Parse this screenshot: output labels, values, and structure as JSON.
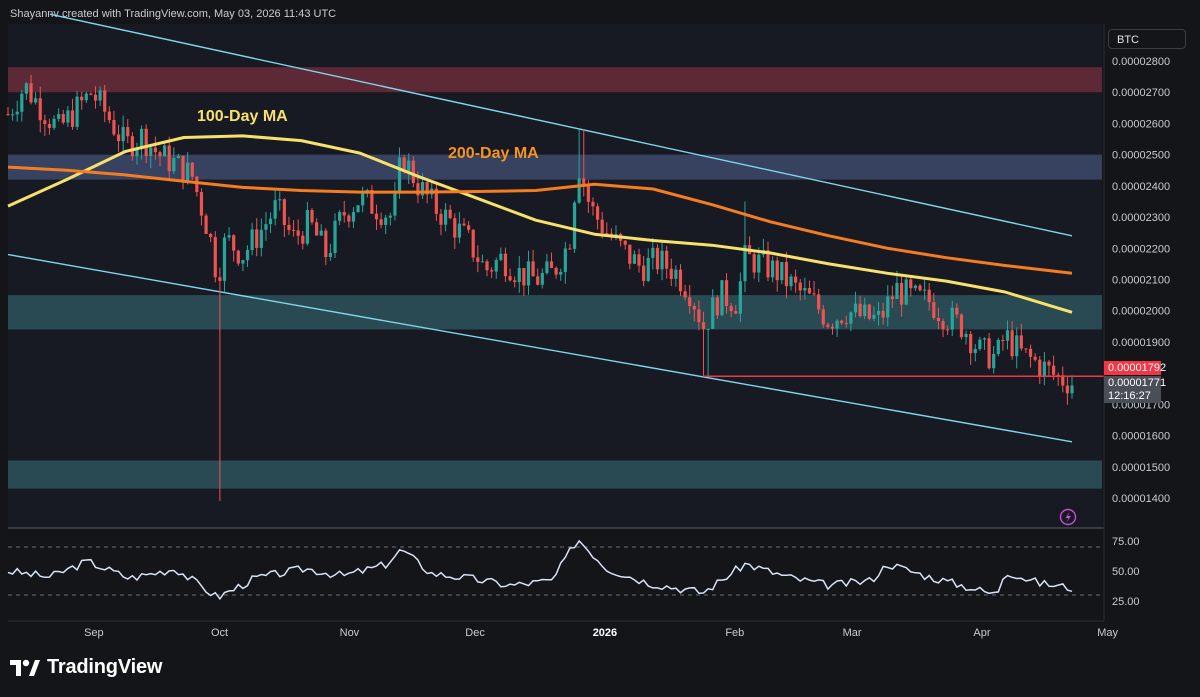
{
  "header": {
    "attribution": "Shayannv created with TradingView.com, May 03, 2026 11:43 UTC"
  },
  "symbol": {
    "label": "BTC"
  },
  "price_axis": {
    "ticks": [
      "0.00002800",
      "0.00002700",
      "0.00002600",
      "0.00002500",
      "0.00002400",
      "0.00002300",
      "0.00002200",
      "0.00002100",
      "0.00002000",
      "0.00001900",
      "0.00001700",
      "0.00001600",
      "0.00001500",
      "0.00001400"
    ]
  },
  "rsi_axis": {
    "ticks": [
      "75.00",
      "50.00",
      "25.00"
    ]
  },
  "time_axis": {
    "ticks": [
      {
        "label": "Sep",
        "bold": false
      },
      {
        "label": "Oct",
        "bold": false
      },
      {
        "label": "Nov",
        "bold": false
      },
      {
        "label": "Dec",
        "bold": false
      },
      {
        "label": "2026",
        "bold": true
      },
      {
        "label": "Feb",
        "bold": false
      },
      {
        "label": "Mar",
        "bold": false
      },
      {
        "label": "Apr",
        "bold": false
      },
      {
        "label": "May",
        "bold": false
      }
    ]
  },
  "annotations": {
    "ma100": "100-Day MA",
    "ma200": "200-Day MA"
  },
  "last_price": {
    "level": "0.00001792",
    "current": "0.00001771",
    "countdown": "12:16:27"
  },
  "branding": {
    "name": "TradingView"
  },
  "colors": {
    "background": "#141519",
    "up": "#26a69a",
    "down": "#ef5350",
    "ma100": "#f7e16b",
    "ma200": "#f57c1f",
    "channel": "#7fd6ea",
    "rsi": "#d7e3f7",
    "level_line": "#f23645"
  },
  "chart_data": {
    "type": "candlestick",
    "series": [
      {
        "name": "100-Day MA",
        "points": [
          [
            "2025-08-22",
            2.335e-05
          ],
          [
            "2025-09-05",
            2.42e-05
          ],
          [
            "2025-09-19",
            2.51e-05
          ],
          [
            "2025-10-03",
            2.555e-05
          ],
          [
            "2025-10-17",
            2.56e-05
          ],
          [
            "2025-10-31",
            2.545e-05
          ],
          [
            "2025-11-14",
            2.505e-05
          ],
          [
            "2025-11-28",
            2.43e-05
          ],
          [
            "2025-12-12",
            2.36e-05
          ],
          [
            "2025-12-26",
            2.29e-05
          ],
          [
            "2026-01-09",
            2.245e-05
          ],
          [
            "2026-01-23",
            2.225e-05
          ],
          [
            "2026-02-06",
            2.21e-05
          ],
          [
            "2026-02-20",
            2.185e-05
          ],
          [
            "2026-03-06",
            2.15e-05
          ],
          [
            "2026-03-20",
            2.12e-05
          ],
          [
            "2026-04-03",
            2.095e-05
          ],
          [
            "2026-04-17",
            2.06e-05
          ],
          [
            "2026-05-03",
            1.995e-05
          ]
        ]
      },
      {
        "name": "200-Day MA",
        "points": [
          [
            "2025-08-22",
            2.46e-05
          ],
          [
            "2025-09-05",
            2.45e-05
          ],
          [
            "2025-09-19",
            2.435e-05
          ],
          [
            "2025-10-03",
            2.415e-05
          ],
          [
            "2025-10-17",
            2.395e-05
          ],
          [
            "2025-10-31",
            2.385e-05
          ],
          [
            "2025-11-14",
            2.38e-05
          ],
          [
            "2025-11-28",
            2.38e-05
          ],
          [
            "2025-12-12",
            2.382e-05
          ],
          [
            "2025-12-26",
            2.385e-05
          ],
          [
            "2026-01-09",
            2.405e-05
          ],
          [
            "2026-01-23",
            2.39e-05
          ],
          [
            "2026-02-06",
            2.34e-05
          ],
          [
            "2026-02-20",
            2.285e-05
          ],
          [
            "2026-03-06",
            2.24e-05
          ],
          [
            "2026-03-20",
            2.2e-05
          ],
          [
            "2026-04-03",
            2.17e-05
          ],
          [
            "2026-04-17",
            2.145e-05
          ],
          [
            "2026-05-03",
            2.12e-05
          ]
        ]
      }
    ],
    "closes": [
      [
        "2025-08-22",
        2.63e-05
      ],
      [
        "2025-08-26",
        2.72e-05
      ],
      [
        "2025-08-30",
        2.65e-05
      ],
      [
        "2025-09-03",
        2.58e-05
      ],
      [
        "2025-09-07",
        2.64e-05
      ],
      [
        "2025-09-11",
        2.7e-05
      ],
      [
        "2025-09-15",
        2.62e-05
      ],
      [
        "2025-09-19",
        2.53e-05
      ],
      [
        "2025-09-23",
        2.56e-05
      ],
      [
        "2025-09-27",
        2.5e-05
      ],
      [
        "2025-10-01",
        2.47e-05
      ],
      [
        "2025-10-05",
        2.43e-05
      ],
      [
        "2025-10-09",
        2.25e-05
      ],
      [
        "2025-10-11",
        2.11e-05
      ],
      [
        "2025-10-13",
        2.23e-05
      ],
      [
        "2025-10-17",
        2.18e-05
      ],
      [
        "2025-10-21",
        2.25e-05
      ],
      [
        "2025-10-25",
        2.33e-05
      ],
      [
        "2025-10-29",
        2.23e-05
      ],
      [
        "2025-11-02",
        2.28e-05
      ],
      [
        "2025-11-06",
        2.18e-05
      ],
      [
        "2025-11-10",
        2.31e-05
      ],
      [
        "2025-11-14",
        2.36e-05
      ],
      [
        "2025-11-18",
        2.33e-05
      ],
      [
        "2025-11-22",
        2.3e-05
      ],
      [
        "2025-11-24",
        2.5e-05
      ],
      [
        "2025-11-28",
        2.4e-05
      ],
      [
        "2025-12-02",
        2.33e-05
      ],
      [
        "2025-12-06",
        2.28e-05
      ],
      [
        "2025-12-10",
        2.22e-05
      ],
      [
        "2025-12-14",
        2.13e-05
      ],
      [
        "2025-12-18",
        2.17e-05
      ],
      [
        "2025-12-22",
        2.12e-05
      ],
      [
        "2025-12-26",
        2.1e-05
      ],
      [
        "2025-12-30",
        2.12e-05
      ],
      [
        "2026-01-03",
        2.22e-05
      ],
      [
        "2026-01-05",
        2.48e-05
      ],
      [
        "2026-01-08",
        2.33e-05
      ],
      [
        "2026-01-12",
        2.25e-05
      ],
      [
        "2026-01-16",
        2.19e-05
      ],
      [
        "2026-01-20",
        2.14e-05
      ],
      [
        "2026-01-24",
        2.16e-05
      ],
      [
        "2026-01-28",
        2.13e-05
      ],
      [
        "2026-02-01",
        2.06e-05
      ],
      [
        "2026-02-04",
        1.95e-05
      ],
      [
        "2026-02-08",
        2.05e-05
      ],
      [
        "2026-02-12",
        2.03e-05
      ],
      [
        "2026-02-14",
        2.17e-05
      ],
      [
        "2026-02-18",
        2.15e-05
      ],
      [
        "2026-02-22",
        2.12e-05
      ],
      [
        "2026-02-26",
        2.07e-05
      ],
      [
        "2026-03-02",
        2.03e-05
      ],
      [
        "2026-03-06",
        1.97e-05
      ],
      [
        "2026-03-10",
        2e-05
      ],
      [
        "2026-03-14",
        1.98e-05
      ],
      [
        "2026-03-18",
        1.97e-05
      ],
      [
        "2026-03-22",
        2.07e-05
      ],
      [
        "2026-03-26",
        2.04e-05
      ],
      [
        "2026-03-30",
        2.03e-05
      ],
      [
        "2026-04-03",
        1.98e-05
      ],
      [
        "2026-04-07",
        1.95e-05
      ],
      [
        "2026-04-11",
        1.87e-05
      ],
      [
        "2026-04-15",
        1.85e-05
      ],
      [
        "2026-04-17",
        1.92e-05
      ],
      [
        "2026-04-21",
        1.86e-05
      ],
      [
        "2026-04-25",
        1.83e-05
      ],
      [
        "2026-04-29",
        1.79e-05
      ],
      [
        "2026-05-03",
        1.77e-05
      ]
    ],
    "y_axis": {
      "min": 1.35e-05,
      "max": 2.9e-05
    },
    "x_axis": {
      "start": "2025-08-22",
      "end": "2026-05-03"
    },
    "zones": [
      {
        "low": 2.7e-05,
        "high": 2.78e-05
      },
      {
        "low": 2.42e-05,
        "high": 2.5e-05
      },
      {
        "low": 1.94e-05,
        "high": 2.05e-05
      },
      {
        "low": 1.43e-05,
        "high": 1.52e-05
      }
    ],
    "channel": [
      {
        "from": [
          "2025-09-01",
          2.95e-05
        ],
        "to": [
          "2026-05-03",
          2.24e-05
        ]
      },
      {
        "from": [
          "2025-08-22",
          2.18e-05
        ],
        "to": [
          "2026-05-03",
          1.58e-05
        ]
      }
    ],
    "support_line": {
      "price": 1.79e-05,
      "from": "2026-02-04",
      "to": "2026-05-03"
    },
    "rsi": {
      "ylim": [
        0,
        100
      ],
      "levels": [
        30,
        70
      ],
      "values": [
        [
          "2025-08-22",
          50
        ],
        [
          "2025-09-01",
          45
        ],
        [
          "2025-09-10",
          58
        ],
        [
          "2025-09-20",
          44
        ],
        [
          "2025-10-01",
          52
        ],
        [
          "2025-10-11",
          28
        ],
        [
          "2025-10-20",
          44
        ],
        [
          "2025-11-01",
          52
        ],
        [
          "2025-11-10",
          46
        ],
        [
          "2025-11-20",
          55
        ],
        [
          "2025-11-24",
          68
        ],
        [
          "2025-12-01",
          48
        ],
        [
          "2025-12-10",
          44
        ],
        [
          "2025-12-20",
          38
        ],
        [
          "2025-12-30",
          42
        ],
        [
          "2026-01-05",
          77
        ],
        [
          "2026-01-12",
          52
        ],
        [
          "2026-01-22",
          40
        ],
        [
          "2026-02-04",
          32
        ],
        [
          "2026-02-14",
          56
        ],
        [
          "2026-02-24",
          45
        ],
        [
          "2026-03-06",
          38
        ],
        [
          "2026-03-16",
          42
        ],
        [
          "2026-03-20",
          56
        ],
        [
          "2026-03-30",
          45
        ],
        [
          "2026-04-09",
          36
        ],
        [
          "2026-04-15",
          30
        ],
        [
          "2026-04-17",
          50
        ],
        [
          "2026-04-25",
          40
        ],
        [
          "2026-05-03",
          36
        ]
      ]
    }
  }
}
